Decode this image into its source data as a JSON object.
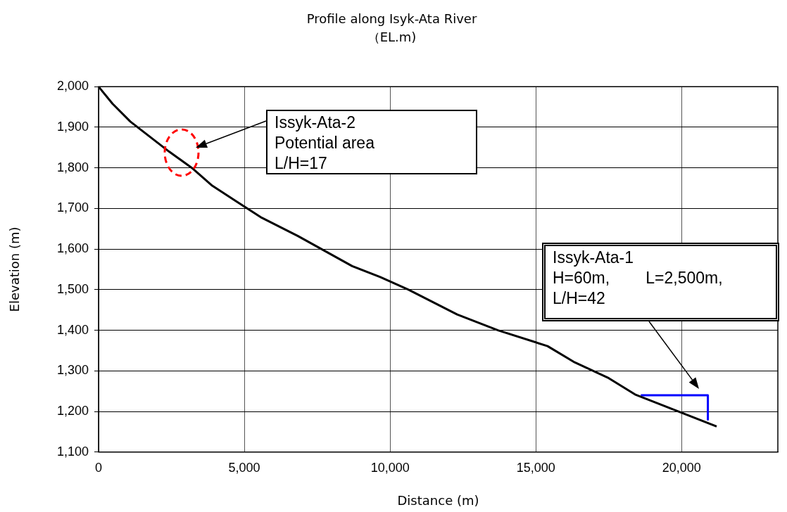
{
  "chart_data": {
    "type": "line",
    "title": "Profile along Isyk-Ata River",
    "subtitle": "（EL.m)",
    "xlabel": "Distance (m)",
    "ylabel": "Elevation (m)",
    "xlim": [
      0,
      23300
    ],
    "xticks": [
      0,
      {
        "value": 5000,
        "label": "5,000"
      },
      {
        "value": 10000,
        "label": "10,000"
      },
      {
        "value": 15000,
        "label": "15,000"
      },
      {
        "value": 20000,
        "label": "20,000"
      }
    ],
    "ylim": [
      1100,
      2000
    ],
    "yticks": [
      {
        "value": 1100,
        "label": "1,100"
      },
      {
        "value": 1200,
        "label": "1,200"
      },
      {
        "value": 1300,
        "label": "1,300"
      },
      {
        "value": 1400,
        "label": "1,400"
      },
      {
        "value": 1500,
        "label": "1,500"
      },
      {
        "value": 1600,
        "label": "1,600"
      },
      {
        "value": 1700,
        "label": "1,700"
      },
      {
        "value": 1800,
        "label": "1,800"
      },
      {
        "value": 1900,
        "label": "1,900"
      },
      {
        "value": 2000,
        "label": "2,000"
      }
    ],
    "grid": true,
    "legend": false,
    "marker": "none",
    "line_style": "solid",
    "series": [
      {
        "color": "#000000",
        "x": [
          0,
          480,
          1090,
          2420,
          3200,
          3900,
          4760,
          5600,
          6840,
          8700,
          9660,
          10630,
          12300,
          13700,
          15400,
          16330,
          17500,
          18400,
          21200
        ],
        "values": [
          2000,
          1958,
          1914,
          1840,
          1800,
          1756,
          1716,
          1677,
          1632,
          1558,
          1531,
          1500,
          1439,
          1400,
          1361,
          1321,
          1282,
          1242,
          1163
        ]
      },
      {
        "color": "#0000ff",
        "x": [
          18600,
          20900,
          20900
        ],
        "values": [
          1240,
          1240,
          1180
        ]
      }
    ],
    "annotations": [
      "Issyk-Ata-2\nPotential area\nL/H=17",
      "Issyk-Ata-1\nH=60m,        L=2,500m,\nL/H=42"
    ]
  }
}
